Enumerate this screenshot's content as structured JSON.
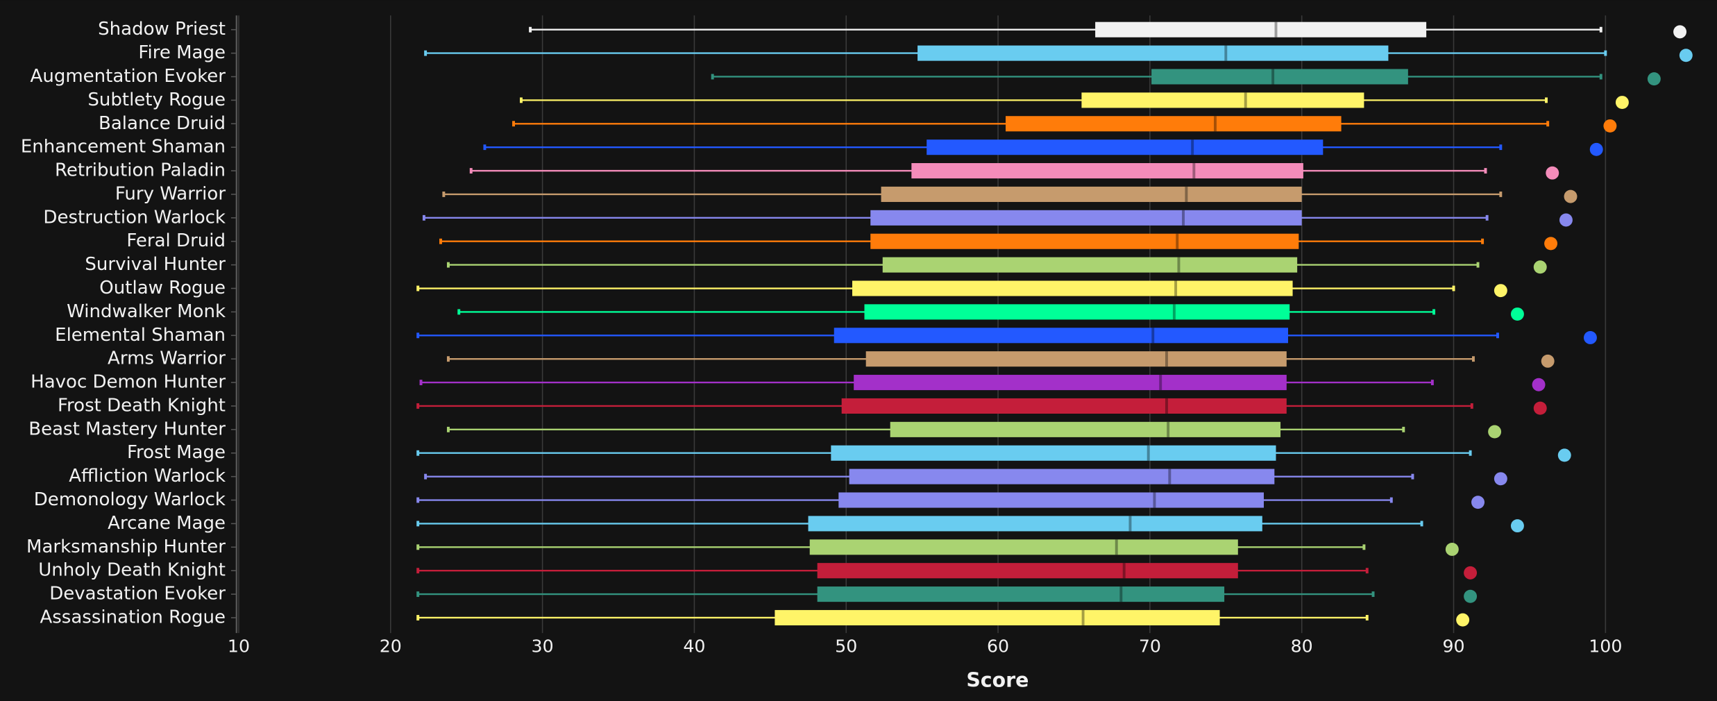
{
  "chart_data": {
    "type": "box",
    "x_label": "Score",
    "xlim": [
      10,
      105.9
    ],
    "xticks": [
      10,
      20,
      30,
      40,
      50,
      60,
      70,
      80,
      90,
      100
    ],
    "grid": true,
    "categories": [
      "Shadow Priest",
      "Fire Mage",
      "Augmentation Evoker",
      "Subtlety Rogue",
      "Balance Druid",
      "Enhancement Shaman",
      "Retribution Paladin",
      "Fury Warrior",
      "Destruction Warlock",
      "Feral Druid",
      "Survival Hunter",
      "Outlaw Rogue",
      "Windwalker Monk",
      "Elemental Shaman",
      "Arms Warrior",
      "Havoc Demon Hunter",
      "Frost Death Knight",
      "Beast Mastery Hunter",
      "Frost Mage",
      "Affliction Warlock",
      "Demonology Warlock",
      "Arcane Mage",
      "Marksmanship Hunter",
      "Unholy Death Knight",
      "Devastation Evoker",
      "Assassination Rogue"
    ],
    "colors": [
      "#f2f2f2",
      "#69ccf0",
      "#33937f",
      "#fff468",
      "#ff7c0a",
      "#2359ff",
      "#f48cba",
      "#c69b6d",
      "#8788ee",
      "#ff7c0a",
      "#aad372",
      "#fff468",
      "#00ff98",
      "#2359ff",
      "#c69b6d",
      "#a330c9",
      "#c41e3a",
      "#aad372",
      "#69ccf0",
      "#8788ee",
      "#8788ee",
      "#69ccf0",
      "#aad372",
      "#c41e3a",
      "#33937f",
      "#fff468"
    ],
    "whisker_low": [
      29.2,
      22.3,
      41.2,
      28.6,
      28.1,
      26.2,
      25.3,
      23.5,
      22.2,
      23.3,
      23.8,
      21.8,
      24.5,
      21.8,
      23.8,
      22.0,
      21.8,
      23.8,
      21.8,
      22.3,
      21.8,
      21.8,
      21.8,
      21.8,
      21.8,
      21.8
    ],
    "q1": [
      66.4,
      54.7,
      70.1,
      65.5,
      60.5,
      55.3,
      54.3,
      52.3,
      51.6,
      51.6,
      52.4,
      50.4,
      51.2,
      49.2,
      51.3,
      50.5,
      49.7,
      52.9,
      49.0,
      50.2,
      49.5,
      47.5,
      47.6,
      48.1,
      48.1,
      45.3
    ],
    "median": [
      78.3,
      75.0,
      78.1,
      76.3,
      74.3,
      72.8,
      72.9,
      72.4,
      72.2,
      71.8,
      71.9,
      71.7,
      71.6,
      70.2,
      71.1,
      70.7,
      71.1,
      71.2,
      69.9,
      71.3,
      70.3,
      68.7,
      67.8,
      68.3,
      68.1,
      65.6
    ],
    "q3": [
      88.2,
      85.7,
      87.0,
      84.1,
      82.6,
      81.4,
      80.1,
      80.0,
      80.0,
      79.8,
      79.7,
      79.4,
      79.2,
      79.1,
      79.0,
      79.0,
      79.0,
      78.6,
      78.3,
      78.2,
      77.5,
      77.4,
      75.8,
      75.8,
      74.9,
      74.6
    ],
    "whisker_high": [
      99.7,
      100.0,
      99.7,
      96.1,
      96.2,
      93.1,
      92.1,
      93.1,
      92.2,
      91.9,
      91.6,
      90.0,
      88.7,
      92.9,
      91.3,
      88.6,
      91.2,
      86.7,
      91.1,
      87.3,
      85.9,
      87.9,
      84.1,
      84.3,
      84.7,
      84.3
    ],
    "points": [
      104.9,
      105.3,
      103.2,
      101.1,
      100.3,
      99.4,
      96.5,
      97.7,
      97.4,
      96.4,
      95.7,
      93.1,
      94.2,
      99.0,
      96.2,
      95.6,
      95.7,
      92.7,
      97.3,
      93.1,
      91.6,
      94.2,
      89.9,
      91.1,
      91.1,
      90.6
    ]
  }
}
